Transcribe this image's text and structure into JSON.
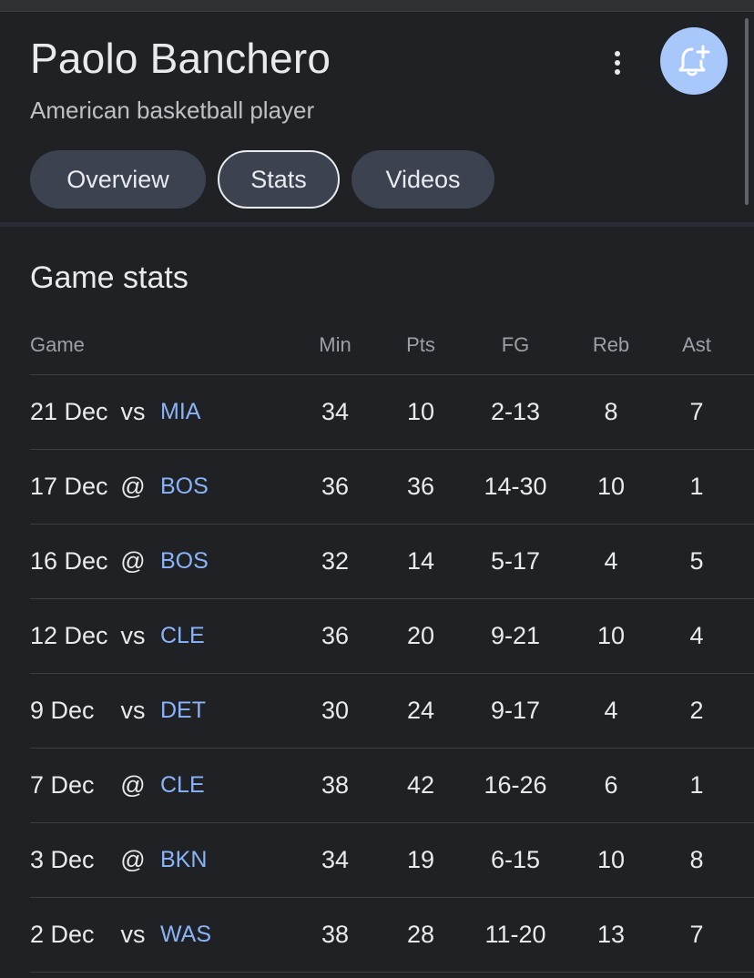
{
  "player": {
    "name": "Paolo Banchero",
    "description": "American basketball player"
  },
  "tabs": [
    {
      "label": "Overview",
      "selected": false
    },
    {
      "label": "Stats",
      "selected": true
    },
    {
      "label": "Videos",
      "selected": false
    }
  ],
  "icons": {
    "more": "more-vert-icon",
    "follow": "bell-plus-icon"
  },
  "colors": {
    "background": "#202124",
    "accent": "#a8c7fa",
    "link": "#8ab4f8",
    "tab_bg": "#3c4250"
  },
  "section": {
    "title": "Game stats"
  },
  "table": {
    "headers": {
      "game": "Game",
      "min": "Min",
      "pts": "Pts",
      "fg": "FG",
      "reb": "Reb",
      "ast": "Ast"
    },
    "rows": [
      {
        "date": "21 Dec",
        "ha": "vs",
        "opp": "MIA",
        "min": "34",
        "pts": "10",
        "fg": "2-13",
        "reb": "8",
        "ast": "7"
      },
      {
        "date": "17 Dec",
        "ha": "@",
        "opp": "BOS",
        "min": "36",
        "pts": "36",
        "fg": "14-30",
        "reb": "10",
        "ast": "1"
      },
      {
        "date": "16 Dec",
        "ha": "@",
        "opp": "BOS",
        "min": "32",
        "pts": "14",
        "fg": "5-17",
        "reb": "4",
        "ast": "5"
      },
      {
        "date": "12 Dec",
        "ha": "vs",
        "opp": "CLE",
        "min": "36",
        "pts": "20",
        "fg": "9-21",
        "reb": "10",
        "ast": "4"
      },
      {
        "date": "9 Dec",
        "ha": "vs",
        "opp": "DET",
        "min": "30",
        "pts": "24",
        "fg": "9-17",
        "reb": "4",
        "ast": "2"
      },
      {
        "date": "7 Dec",
        "ha": "@",
        "opp": "CLE",
        "min": "38",
        "pts": "42",
        "fg": "16-26",
        "reb": "6",
        "ast": "1"
      },
      {
        "date": "3 Dec",
        "ha": "@",
        "opp": "BKN",
        "min": "34",
        "pts": "19",
        "fg": "6-15",
        "reb": "10",
        "ast": "8"
      },
      {
        "date": "2 Dec",
        "ha": "vs",
        "opp": "WAS",
        "min": "38",
        "pts": "28",
        "fg": "11-20",
        "reb": "13",
        "ast": "7"
      }
    ]
  }
}
